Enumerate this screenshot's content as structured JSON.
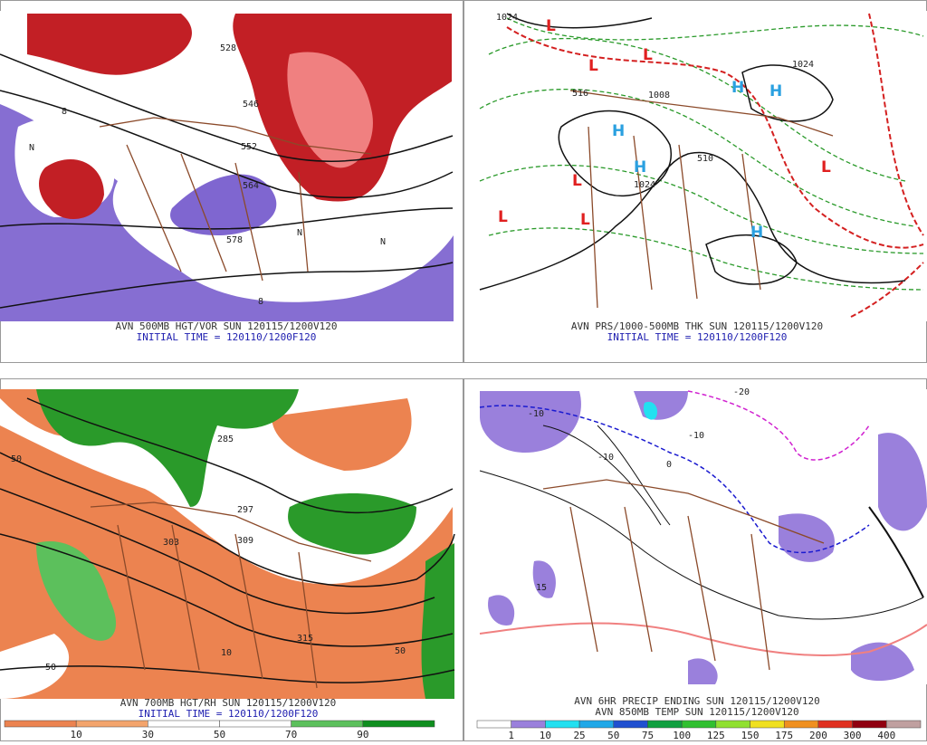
{
  "panels": [
    {
      "caption": "AVN 500MB HGT/VOR SUN 120115/1200V120",
      "initial": "INITIAL TIME = 120110/1200F120",
      "labels": [
        "528",
        "546",
        "552",
        "564",
        "578",
        "N",
        "N",
        "N",
        "8",
        "8"
      ]
    },
    {
      "caption": "AVN PRS/1000-500MB THK SUN 120115/1200V120",
      "initial": "INITIAL TIME = 120110/1200F120",
      "labels": [
        "L",
        "L",
        "L",
        "L",
        "L",
        "L",
        "L",
        "H",
        "H",
        "H",
        "H",
        "H",
        "1024",
        "1024",
        "1008",
        "510",
        "516",
        "1024"
      ]
    },
    {
      "caption": "AVN 700MB HGT/RH SUN 120115/1200V120",
      "initial": "INITIAL TIME = 120110/1200F120",
      "labels": [
        "303",
        "309",
        "315",
        "285",
        "297",
        "50",
        "50",
        "10",
        "50"
      ],
      "colorbar": {
        "labels": [
          10,
          30,
          50,
          70,
          90
        ],
        "colors": [
          "#ec8350",
          "#f3a46c",
          "#ffffff",
          "#ffffff",
          "#5cc05c",
          "#0f8f1f"
        ]
      }
    },
    {
      "caption": "AVN 6HR PRECIP ENDING SUN 120115/1200V120",
      "initial": "AVN 850MB TEMP SUN 120115/1200V120",
      "labels": [
        "-20",
        "-10",
        "0",
        "-10",
        "15",
        "-10"
      ],
      "colorbar": {
        "labels": [
          1,
          10,
          25,
          50,
          75,
          100,
          125,
          150,
          175,
          200,
          300,
          400
        ],
        "colors": [
          "#ffffff",
          "#9a80dc",
          "#22e0f0",
          "#20a8e8",
          "#2050d0",
          "#10a040",
          "#30c030",
          "#90e030",
          "#f0e020",
          "#f09020",
          "#e03020",
          "#900010",
          "#c0a0a0"
        ]
      }
    }
  ]
}
